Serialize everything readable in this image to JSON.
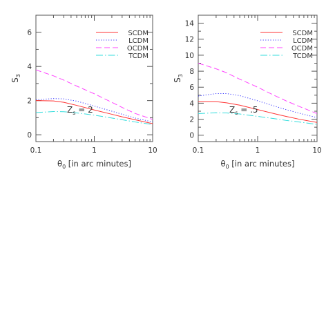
{
  "chart_data": [
    {
      "type": "line",
      "xlabel": "θ",
      "xlabel_sub": "0",
      "xlabel_rest": " [in arc minutes]",
      "ylabel": "S",
      "ylabel_sub": "3",
      "x_scale": "log",
      "xlim": [
        0.1,
        10
      ],
      "ylim": [
        -0.4,
        7
      ],
      "x_ticks": [
        0.1,
        1,
        10
      ],
      "x_tick_labels": [
        "0.1",
        "1",
        "10"
      ],
      "y_ticks": [
        0,
        2,
        4,
        6
      ],
      "y_tick_labels": [
        "0",
        "2",
        "4",
        "6"
      ],
      "annotation": {
        "prefix": "Z",
        "sub": "s",
        "suffix": " = 2"
      },
      "legend_position": "top-right",
      "series": [
        {
          "name": "SCDM",
          "color": "#ff3333",
          "dash": "solid",
          "x": [
            0.1,
            0.2,
            0.3,
            0.5,
            1,
            2,
            3,
            5,
            10
          ],
          "y": [
            2.0,
            1.98,
            1.9,
            1.72,
            1.45,
            1.2,
            1.05,
            0.88,
            0.65
          ]
        },
        {
          "name": "LCDM",
          "color": "#3333ff",
          "dash": "dotted",
          "x": [
            0.1,
            0.2,
            0.3,
            0.5,
            1,
            2,
            3,
            5,
            10
          ],
          "y": [
            2.05,
            2.12,
            2.1,
            1.97,
            1.68,
            1.38,
            1.2,
            0.98,
            0.75
          ]
        },
        {
          "name": "OCDM",
          "color": "#ff44ff",
          "dash": "dashed",
          "x": [
            0.1,
            0.2,
            0.3,
            0.5,
            1,
            2,
            3,
            5,
            10
          ],
          "y": [
            3.8,
            3.45,
            3.2,
            2.85,
            2.4,
            1.9,
            1.6,
            1.25,
            0.9
          ]
        },
        {
          "name": "TCDM",
          "color": "#33dddd",
          "dash": "dashdot",
          "x": [
            0.1,
            0.2,
            0.3,
            0.5,
            1,
            2,
            3,
            5,
            10
          ],
          "y": [
            1.3,
            1.36,
            1.35,
            1.28,
            1.15,
            0.98,
            0.88,
            0.75,
            0.6
          ]
        }
      ]
    },
    {
      "type": "line",
      "xlabel": "θ",
      "xlabel_sub": "0",
      "xlabel_rest": " [in arc minutes]",
      "ylabel": "S",
      "ylabel_sub": "3",
      "x_scale": "log",
      "xlim": [
        0.1,
        10
      ],
      "ylim": [
        -0.8,
        15
      ],
      "x_ticks": [
        0.1,
        1,
        10
      ],
      "x_tick_labels": [
        "0.1",
        "1",
        "10"
      ],
      "y_ticks": [
        0,
        2,
        4,
        6,
        8,
        10,
        12,
        14
      ],
      "y_tick_labels": [
        "0",
        "2",
        "4",
        "6",
        "8",
        "10",
        "12",
        "14"
      ],
      "annotation": {
        "prefix": "Z",
        "sub": "s",
        "suffix": " = .5"
      },
      "legend_position": "top-right",
      "series": [
        {
          "name": "SCDM",
          "color": "#ff3333",
          "dash": "solid",
          "x": [
            0.1,
            0.2,
            0.3,
            0.5,
            1,
            2,
            3,
            5,
            10
          ],
          "y": [
            4.2,
            4.2,
            4.05,
            3.75,
            3.2,
            2.65,
            2.35,
            2.0,
            1.6
          ]
        },
        {
          "name": "LCDM",
          "color": "#3333ff",
          "dash": "dotted",
          "x": [
            0.1,
            0.2,
            0.3,
            0.5,
            1,
            2,
            3,
            5,
            10
          ],
          "y": [
            4.9,
            5.2,
            5.2,
            4.95,
            4.3,
            3.6,
            3.2,
            2.75,
            2.2
          ]
        },
        {
          "name": "OCDM",
          "color": "#ff44ff",
          "dash": "dashed",
          "x": [
            0.1,
            0.2,
            0.3,
            0.5,
            1,
            2,
            3,
            5,
            10
          ],
          "y": [
            9.0,
            8.3,
            7.8,
            7.0,
            6.0,
            4.9,
            4.3,
            3.6,
            2.7
          ]
        },
        {
          "name": "TCDM",
          "color": "#33dddd",
          "dash": "dashdot",
          "x": [
            0.1,
            0.2,
            0.3,
            0.5,
            1,
            2,
            3,
            5,
            10
          ],
          "y": [
            2.7,
            2.8,
            2.78,
            2.65,
            2.35,
            2.05,
            1.85,
            1.65,
            1.35
          ]
        }
      ]
    }
  ]
}
